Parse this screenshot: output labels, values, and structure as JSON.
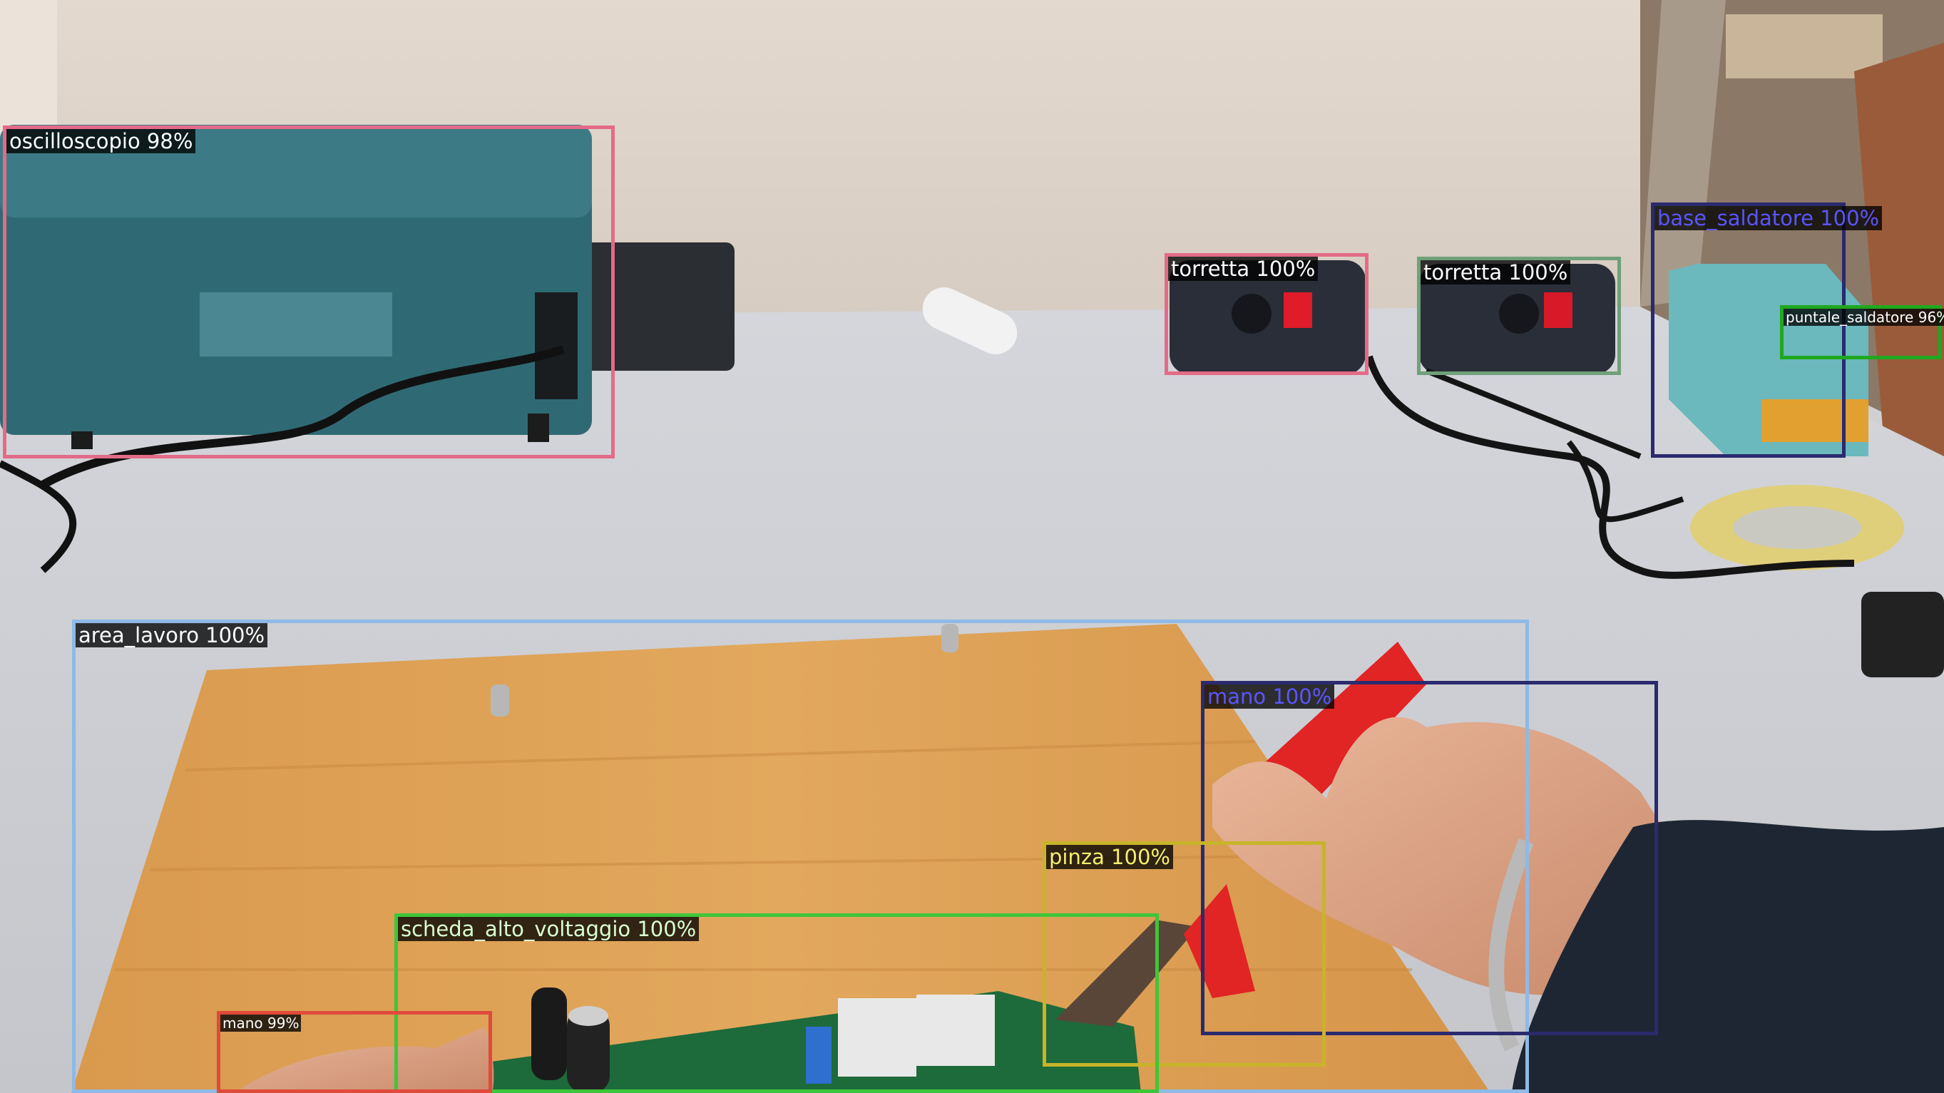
{
  "detections": [
    {
      "id": "oscilloscope",
      "label": "oscilloscopio 98%",
      "color": "#e36b88",
      "text_color": "#ffffff"
    },
    {
      "id": "outlet-1",
      "label": "torretta 100%",
      "color": "#e36b88",
      "text_color": "#ffffff"
    },
    {
      "id": "outlet-2",
      "label": "torretta 100%",
      "color": "#6fa07a",
      "text_color": "#ffffff"
    },
    {
      "id": "soldering-base",
      "label": "base_saldatore 100%",
      "color": "#2b2a6e",
      "text_color": "#5a55ff"
    },
    {
      "id": "soldering-tip",
      "label": "puntale_saldatore 96%",
      "color": "#1fa81f",
      "text_color": "#ffffff"
    },
    {
      "id": "work-area",
      "label": "area_lavoro 100%",
      "color": "#8fb9e6",
      "text_color": "#ffffff"
    },
    {
      "id": "hand-right",
      "label": "mano 100%",
      "color": "#2b2a6e",
      "text_color": "#5a55ff"
    },
    {
      "id": "pliers",
      "label": "pinza 100%",
      "color": "#c8b42a",
      "text_color": "#f5ee70"
    },
    {
      "id": "hv-board",
      "label": "scheda_alto_voltaggio 100%",
      "color": "#3ec63a",
      "text_color": "#d9ffd0"
    },
    {
      "id": "hand-left",
      "label": "mano 99%",
      "color": "#e04a3a",
      "text_color": "#ffffff"
    }
  ]
}
